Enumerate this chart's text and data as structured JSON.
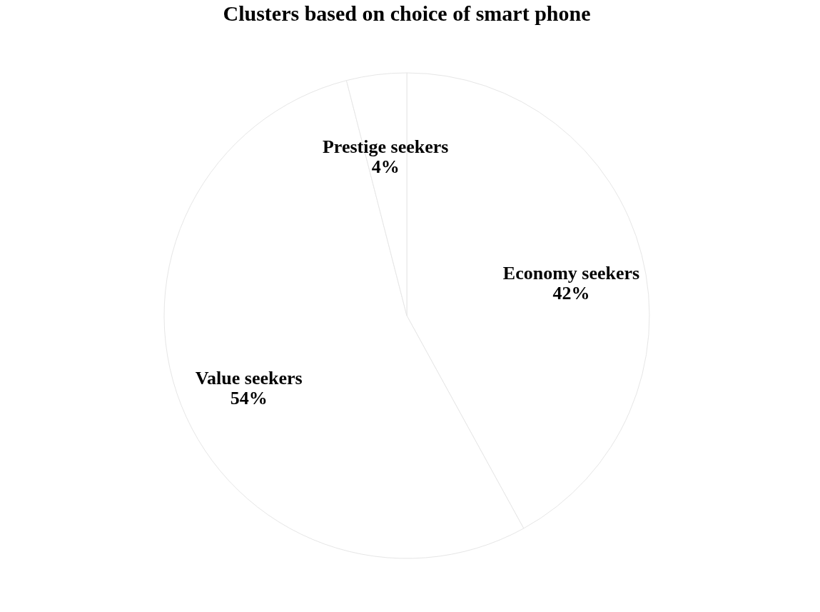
{
  "chart_data": {
    "type": "pie",
    "title": "Clusters based on choice of smart phone",
    "categories": [
      "Economy seekers",
      "Value seekers",
      "Prestige seekers"
    ],
    "values": [
      42,
      54,
      4
    ],
    "colors": [
      "#ffffff",
      "#ffffff",
      "#ffffff"
    ],
    "value_labels": [
      "42%",
      "54%",
      "4%"
    ],
    "legend": false
  }
}
